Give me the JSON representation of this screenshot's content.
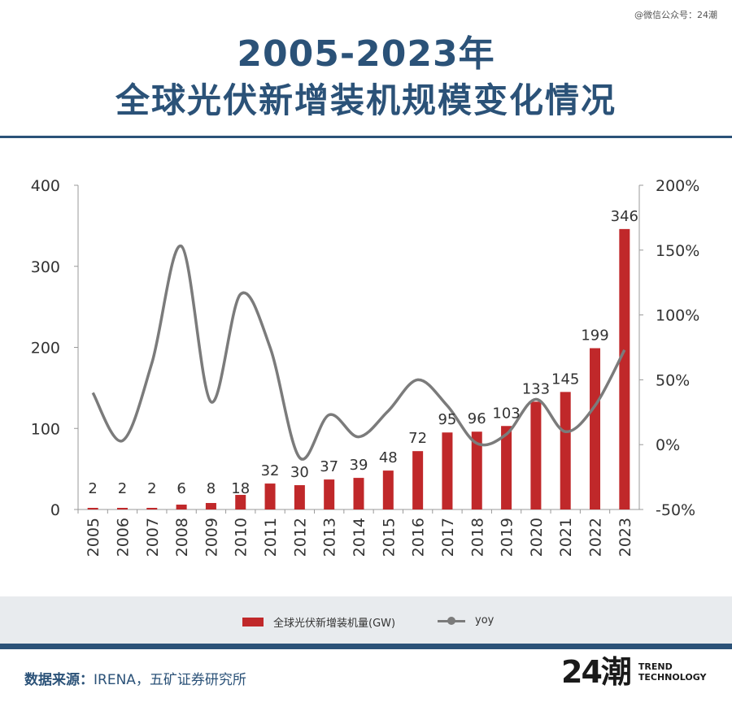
{
  "watermark": "@微信公众号：24潮",
  "title": {
    "line1": "2005-2023年",
    "line2": "全球光伏新增装机规模变化情况"
  },
  "footer": {
    "source_label": "数据来源：",
    "source_text": "IRENA，五矿证券研究所",
    "logo_mark": "24潮",
    "logo_line1": "TREND",
    "logo_line2": "TECHNOLOGY"
  },
  "colors": {
    "title": "#2b5278",
    "bar": "#c0282a",
    "line": "#7b7b7b",
    "legend_band": "#e8ebee"
  },
  "chart_data": {
    "type": "bar",
    "categories": [
      "2005",
      "2006",
      "2007",
      "2008",
      "2009",
      "2010",
      "2011",
      "2012",
      "2013",
      "2014",
      "2015",
      "2016",
      "2017",
      "2018",
      "2019",
      "2020",
      "2021",
      "2022",
      "2023"
    ],
    "series": [
      {
        "name": "全球光伏新增装机量(GW)",
        "type": "bar",
        "axis": "left",
        "values": [
          2,
          2,
          2,
          6,
          8,
          18,
          32,
          30,
          37,
          39,
          48,
          72,
          95,
          96,
          103,
          133,
          145,
          199,
          346
        ]
      },
      {
        "name": "yoy",
        "type": "line",
        "axis": "right",
        "values": [
          40,
          3,
          63,
          153,
          33,
          116,
          75,
          -10,
          23,
          6,
          26,
          50,
          30,
          1,
          8,
          35,
          10,
          30,
          73
        ]
      }
    ],
    "y_left": {
      "min": 0,
      "max": 400,
      "ticks": [
        "0",
        "100",
        "200",
        "300",
        "400"
      ]
    },
    "y_right": {
      "min": -50,
      "max": 200,
      "ticks": [
        "-50%",
        "0%",
        "50%",
        "100%",
        "150%",
        "200%"
      ]
    },
    "legend_position": "bottom",
    "grid": false
  }
}
